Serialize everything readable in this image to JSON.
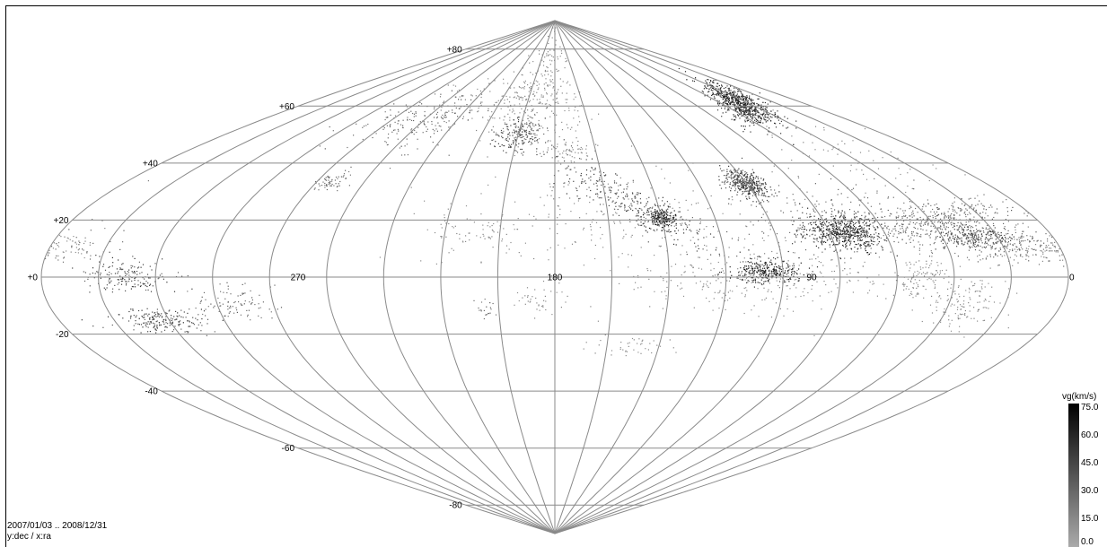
{
  "chart_data": {
    "type": "scatter",
    "projection": "sinusoidal",
    "grid": true,
    "xlim": [
      360,
      0
    ],
    "ylim": [
      -90,
      90
    ],
    "dec_gridlines": [
      -80,
      -60,
      -40,
      -20,
      0,
      20,
      40,
      60,
      80
    ],
    "ra_gridlines": [
      0,
      20,
      40,
      60,
      80,
      100,
      120,
      140,
      160,
      180,
      200,
      220,
      240,
      260,
      280,
      300,
      320,
      340,
      360
    ],
    "dec_tick_labels": [
      {
        "dec": 80,
        "label": "+80"
      },
      {
        "dec": 60,
        "label": "+60"
      },
      {
        "dec": 40,
        "label": "+40"
      },
      {
        "dec": 20,
        "label": "+20"
      },
      {
        "dec": 0,
        "label": "+0"
      },
      {
        "dec": -20,
        "label": "-20"
      },
      {
        "dec": -40,
        "label": "-40"
      },
      {
        "dec": -60,
        "label": "-60"
      },
      {
        "dec": -80,
        "label": "-80"
      }
    ],
    "ra_tick_labels": [
      {
        "ra": 270,
        "label": "270"
      },
      {
        "ra": 180,
        "label": "180"
      },
      {
        "ra": 90,
        "label": "90"
      },
      {
        "ra": 0,
        "label": "0"
      }
    ],
    "clusters": [
      {
        "ra": 45,
        "dec": 61,
        "spread_ra": 10,
        "spread_dec": 3,
        "count": 700,
        "tilt": -0.25,
        "vg": 60
      },
      {
        "ra": 100,
        "dec": 33,
        "spread_ra": 4,
        "spread_dec": 2.5,
        "count": 420,
        "vg": 45
      },
      {
        "ra": 75,
        "dec": 16,
        "spread_ra": 7,
        "spread_dec": 3,
        "count": 560,
        "vg": 60
      },
      {
        "ra": 60,
        "dec": 19,
        "spread_ra": 25,
        "spread_dec": 6,
        "count": 360,
        "vg": 30
      },
      {
        "ra": 36,
        "dec": 20,
        "spread_ra": 14,
        "spread_dec": 3,
        "count": 320,
        "tilt": -0.15,
        "vg": 30
      },
      {
        "ra": 28,
        "dec": 14,
        "spread_ra": 7,
        "spread_dec": 2,
        "count": 260,
        "vg": 45
      },
      {
        "ra": 12,
        "dec": 11,
        "spread_ra": 14,
        "spread_dec": 3,
        "count": 170,
        "vg": 30
      },
      {
        "ra": 106,
        "dec": 2,
        "spread_ra": 6,
        "spread_dec": 2,
        "count": 320,
        "vg": 60
      },
      {
        "ra": 110,
        "dec": 0,
        "spread_ra": 24,
        "spread_dec": 6,
        "count": 280,
        "vg": 15
      },
      {
        "ra": 152,
        "dec": 27,
        "spread_ra": 16,
        "spread_dec": 4,
        "count": 280,
        "tilt": 0.5,
        "vg": 45
      },
      {
        "ra": 160,
        "dec": 22,
        "spread_ra": 24,
        "spread_dec": 8,
        "count": 220,
        "vg": 15
      },
      {
        "ra": 140,
        "dec": 21,
        "spread_ra": 3,
        "spread_dec": 2,
        "count": 220,
        "vg": 60
      },
      {
        "ra": 172,
        "dec": 44,
        "spread_ra": 6,
        "spread_dec": 2,
        "count": 60,
        "vg": 15
      },
      {
        "ra": 200,
        "dec": 50,
        "spread_ra": 6,
        "spread_dec": 3,
        "count": 180,
        "vg": 45
      },
      {
        "ra": 190,
        "dec": 64,
        "spread_ra": 14,
        "spread_dec": 10,
        "count": 240,
        "vg": 15
      },
      {
        "ra": 215,
        "dec": 61,
        "spread_ra": 24,
        "spread_dec": 4,
        "count": 130,
        "vg": 15
      },
      {
        "ra": 260,
        "dec": 55,
        "spread_ra": 18,
        "spread_dec": 5,
        "count": 200,
        "vg": 30
      },
      {
        "ra": 274,
        "dec": 34,
        "spread_ra": 4,
        "spread_dec": 2,
        "count": 60,
        "vg": 30
      },
      {
        "ra": 330,
        "dec": 0,
        "spread_ra": 8,
        "spread_dec": 3,
        "count": 170,
        "vg": 45
      },
      {
        "ra": 323,
        "dec": -15,
        "spread_ra": 8,
        "spread_dec": 2,
        "count": 200,
        "vg": 45
      },
      {
        "ra": 293,
        "dec": -9,
        "spread_ra": 7,
        "spread_dec": 3,
        "count": 90,
        "vg": 30
      },
      {
        "ra": 35,
        "dec": -9,
        "spread_ra": 7,
        "spread_dec": 5,
        "count": 140,
        "vg": 15
      },
      {
        "ra": 52,
        "dec": 0,
        "spread_ra": 5,
        "spread_dec": 4,
        "count": 110,
        "vg": 15
      },
      {
        "ra": 4,
        "dec": 11,
        "spread_ra": 10,
        "spread_dec": 3,
        "count": 100,
        "vg": 15
      },
      {
        "ra": 185,
        "dec": -8,
        "spread_ra": 5,
        "spread_dec": 3,
        "count": 40,
        "vg": 15
      },
      {
        "ra": 205,
        "dec": -11,
        "spread_ra": 2,
        "spread_dec": 2,
        "count": 20,
        "vg": 30
      },
      {
        "ra": 152,
        "dec": -24,
        "spread_ra": 7,
        "spread_dec": 2,
        "count": 40,
        "vg": 15
      },
      {
        "ra": 210,
        "dec": 14,
        "spread_ra": 10,
        "spread_dec": 4,
        "count": 70,
        "vg": 15
      },
      {
        "ra": 40,
        "dec": 40,
        "spread_ra": 16,
        "spread_dec": 8,
        "count": 70,
        "vg": 15
      }
    ],
    "colorbar": {
      "title": "vg(km/s)",
      "ticks": [
        "75.0",
        "60.0",
        "45.0",
        "30.0",
        "15.0",
        "0.0"
      ],
      "min": 0,
      "max": 75,
      "colors": [
        "#aaaaaa",
        "#000000"
      ]
    }
  },
  "info": {
    "date_range": "2007/01/03 .. 2008/12/31",
    "axes": "y:dec / x:ra"
  }
}
